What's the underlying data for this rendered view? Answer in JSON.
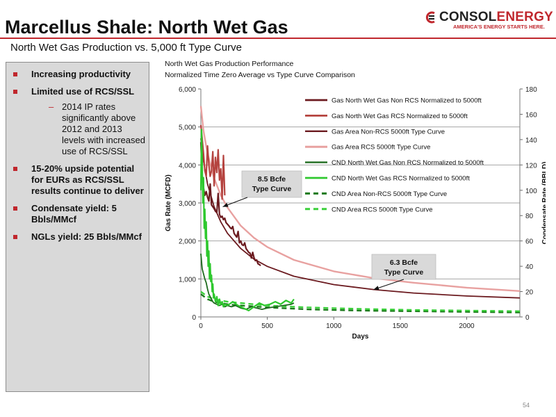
{
  "slide": {
    "title": "Marcellus Shale: North Wet Gas",
    "subtitle": "North Wet Gas Production vs. 5,000 ft Type Curve",
    "page_number": "54",
    "accent_color": "#c0272d"
  },
  "logo": {
    "brand_main": "CONSOL",
    "brand_sub": "ENERGY",
    "tagline": "AMERICA'S ENERGY STARTS HERE."
  },
  "bullets": [
    {
      "text": "Increasing productivity",
      "sub": []
    },
    {
      "text": "Limited use of RCS/SSL",
      "sub": [
        "2014 IP rates significantly above 2012 and 2013 levels with increased use of RCS/SSL"
      ]
    },
    {
      "text": "15-20% upside potential for EURs as RCS/SSL results continue to deliver",
      "sub": []
    },
    {
      "text": "Condensate yield: 5 Bbls/MMcf",
      "sub": []
    },
    {
      "text": "NGLs yield: 25 Bbls/MMcf",
      "sub": []
    }
  ],
  "chart_data": {
    "type": "line",
    "title": "North Wet Gas Production Performance",
    "subtitle": "Normalized Time Zero Average vs Type Curve Comparison",
    "xlabel": "Days",
    "ylabel": "Gas Rate (MCFD)",
    "y2label": "Condensate Rate (BBLD)",
    "xlim": [
      0,
      2400
    ],
    "ylim": [
      0,
      6000
    ],
    "y2lim": [
      0,
      180
    ],
    "xticks": [
      "0",
      "500",
      "1000",
      "1500",
      "2000"
    ],
    "yticks": [
      "0",
      "1,000",
      "2,000",
      "3,000",
      "4,000",
      "5,000",
      "6,000"
    ],
    "y2ticks": [
      "0",
      "20",
      "40",
      "60",
      "80",
      "100",
      "120",
      "140",
      "160",
      "180"
    ],
    "grid": "horizontal",
    "legend_position": "right, inside plot",
    "series": [
      {
        "name": "Gas North Wet Gas Non RCS Normalized to 5000ft",
        "axis": "left",
        "color": "#6b1a1f",
        "width": 2.2,
        "dash": "",
        "x": [
          0,
          10,
          20,
          30,
          40,
          50,
          60,
          70,
          80,
          90,
          100,
          110,
          120,
          130,
          140,
          150,
          160,
          170,
          180,
          190,
          200,
          210,
          220,
          230,
          240,
          250,
          260,
          270,
          280,
          290,
          300,
          310,
          320,
          330,
          340,
          350,
          360,
          370,
          380,
          390,
          400,
          410,
          420,
          430,
          440,
          450
        ],
        "y": [
          4600,
          3600,
          3400,
          3200,
          3300,
          3150,
          3050,
          3500,
          2950,
          2900,
          2850,
          2780,
          2750,
          3250,
          2700,
          2620,
          2650,
          2560,
          2600,
          2480,
          2440,
          2400,
          2350,
          2320,
          2380,
          2200,
          2150,
          2100,
          2250,
          1950,
          2000,
          1900,
          1880,
          1950,
          1800,
          1750,
          1700,
          1680,
          1550,
          1700,
          1560,
          1480,
          1500,
          1400,
          1380,
          1350
        ]
      },
      {
        "name": "Gas North Wet Gas RCS Normalized to 5000ft",
        "axis": "left",
        "color": "#b5433f",
        "width": 2.2,
        "dash": "",
        "x": [
          0,
          10,
          20,
          30,
          40,
          50,
          60,
          70,
          80,
          90,
          100,
          110,
          120,
          130,
          140,
          150,
          160,
          170,
          180
        ],
        "y": [
          5050,
          4700,
          4300,
          3850,
          3700,
          4500,
          4000,
          3700,
          3850,
          4350,
          3450,
          4200,
          3800,
          4400,
          3600,
          3900,
          3100,
          4250,
          3200
        ]
      },
      {
        "name": "Gas Area Non-RCS 5000ft Type Curve",
        "axis": "left",
        "color": "#6b1a1f",
        "width": 1.8,
        "dash": "",
        "x": [
          0,
          20,
          50,
          100,
          150,
          200,
          300,
          400,
          500,
          700,
          1000,
          1300,
          1600,
          2000,
          2400
        ],
        "y": [
          4700,
          4100,
          3500,
          2900,
          2500,
          2200,
          1800,
          1520,
          1330,
          1070,
          850,
          720,
          630,
          550,
          500
        ]
      },
      {
        "name": "Gas Area RCS 5000ft Type Curve",
        "axis": "left",
        "color": "#e8a1a0",
        "width": 2.4,
        "dash": "",
        "x": [
          0,
          20,
          50,
          100,
          150,
          200,
          300,
          400,
          500,
          700,
          1000,
          1300,
          1600,
          2000,
          2400
        ],
        "y": [
          5550,
          4900,
          4300,
          3650,
          3200,
          2880,
          2400,
          2080,
          1840,
          1500,
          1200,
          1020,
          900,
          770,
          680
        ]
      },
      {
        "name": "CND North Wet Gas Non RCS Normalized to 5000ft",
        "axis": "right",
        "color": "#1e6b1e",
        "width": 1.8,
        "dash": "",
        "x": [
          0,
          10,
          20,
          30,
          40,
          50,
          60,
          70,
          80,
          90,
          100,
          120,
          140,
          160,
          180,
          200,
          230,
          260,
          300,
          340,
          380,
          420,
          460,
          500,
          560,
          620,
          680,
          700
        ],
        "y": [
          50,
          38,
          34,
          30,
          27,
          22,
          18,
          16,
          14,
          12,
          11,
          10,
          9,
          10,
          8,
          9,
          8,
          9,
          7,
          6,
          8,
          7,
          6,
          7,
          8,
          9,
          10,
          11
        ]
      },
      {
        "name": "CND North Wet Gas RCS Normalized to 5000ft",
        "axis": "right",
        "color": "#2ec82e",
        "width": 2.2,
        "dash": "",
        "x": [
          0,
          5,
          10,
          15,
          20,
          25,
          30,
          35,
          40,
          45,
          50,
          55,
          60,
          65,
          70,
          75,
          80,
          85,
          90,
          95,
          100,
          110,
          120,
          130,
          140,
          150,
          160,
          170,
          180,
          200,
          240,
          280,
          320,
          360,
          400,
          440,
          480,
          520,
          560,
          600,
          640,
          680,
          700
        ],
        "y": [
          100,
          148,
          120,
          90,
          110,
          70,
          85,
          62,
          75,
          48,
          60,
          40,
          52,
          30,
          42,
          28,
          33,
          20,
          26,
          15,
          18,
          12,
          16,
          9,
          14,
          10,
          12,
          8,
          10,
          9,
          12,
          9,
          7,
          5,
          8,
          11,
          9,
          10,
          12,
          10,
          13,
          11,
          14
        ]
      },
      {
        "name": "CND Area Non-RCS 5000ft Type Curve",
        "axis": "right",
        "color": "#1a7a1a",
        "width": 2.4,
        "dash": "7,5",
        "x": [
          0,
          50,
          100,
          200,
          300,
          500,
          800,
          1200,
          1600,
          2000,
          2400
        ],
        "y": [
          18,
          14,
          12,
          10,
          9,
          7.5,
          6,
          5,
          4.5,
          4,
          3.5
        ]
      },
      {
        "name": "CND Area RCS 5000ft Type Curve",
        "axis": "right",
        "color": "#3ad03a",
        "width": 2.4,
        "dash": "7,5",
        "x": [
          0,
          50,
          100,
          200,
          300,
          500,
          800,
          1200,
          1600,
          2000,
          2400
        ],
        "y": [
          20,
          16,
          14,
          12,
          11,
          9,
          7.5,
          6.3,
          5.5,
          5,
          4.5
        ]
      }
    ],
    "annotations": [
      {
        "text": "8.5 Bcfe Type Curve",
        "box_color": "#d9d9d9",
        "points_to": {
          "x": 165,
          "y": 2900
        }
      },
      {
        "text": "6.3 Bcfe Type Curve",
        "box_color": "#d9d9d9",
        "points_to": {
          "x": 1300,
          "y": 720
        }
      }
    ]
  }
}
